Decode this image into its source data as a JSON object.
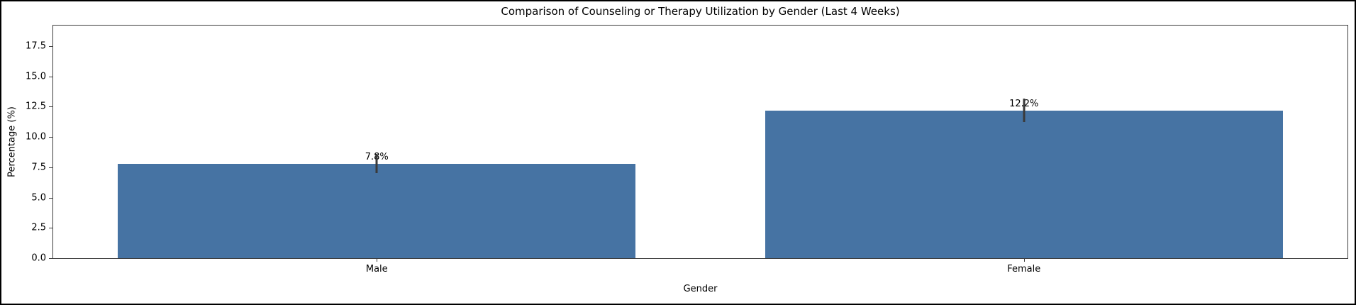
{
  "figure": {
    "background": "#ffffff",
    "border_color": "#000000"
  },
  "chart_data": {
    "type": "bar",
    "title": "Comparison of Counseling or Therapy Utilization by Gender (Last 4 Weeks)",
    "xlabel": "Gender",
    "ylabel": "Percentage (%)",
    "categories": [
      "Male",
      "Female"
    ],
    "values": [
      7.8,
      12.2
    ],
    "bar_labels": [
      "7.8%",
      "12.2%"
    ],
    "error_bars": [
      0.8,
      0.95
    ],
    "ytick_labels": [
      "0.0",
      "2.5",
      "5.0",
      "7.5",
      "10.0",
      "12.5",
      "15.0",
      "17.5"
    ],
    "ylim": [
      0,
      19.2
    ],
    "bar_width_fraction": 0.8,
    "grid": false,
    "legend": null,
    "colors": {
      "bar": "#4673A3",
      "error_bar": "#3A3A3A",
      "spine": "#3C3C3C",
      "text": "#000000"
    }
  }
}
